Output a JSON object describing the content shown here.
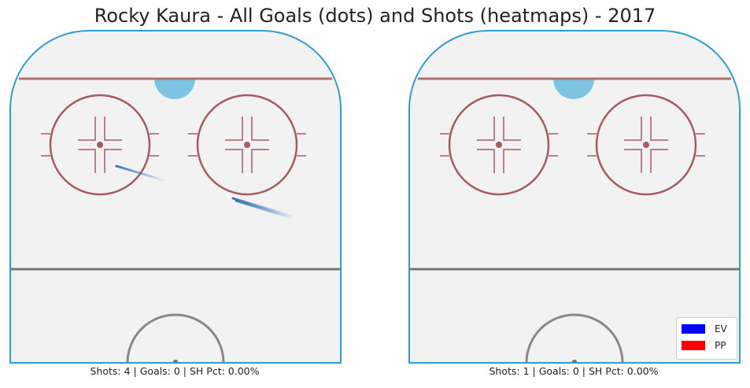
{
  "title": "Rocky Kaura - All Goals (dots) and Shots (heatmaps) - 2017",
  "colors": {
    "board": "#2b9fd2",
    "ice": "#f2f2f2",
    "red_line": "#b07070",
    "circle": "#a85a60",
    "crease": "#7dc4e2",
    "blue_line": "#777777",
    "ev": "#0000ff",
    "pp": "#ff0000",
    "shot_trail": "#2e6fb8"
  },
  "legend": [
    {
      "label": "EV",
      "color": "#0000ff"
    },
    {
      "label": "PP",
      "color": "#ff0000"
    }
  ],
  "chart_data": [
    {
      "type": "heatmap",
      "panel": "left",
      "caption": "Shots: 4 | Goals: 0 | SH Pct: 0.00%",
      "shots": 4,
      "goals": 0,
      "sh_pct": "0.00%",
      "shot_trails": [
        {
          "from": [
            148,
            211
          ],
          "to": [
            208,
            229
          ]
        },
        {
          "from": [
            296,
            252
          ],
          "to": [
            372,
            275
          ]
        },
        {
          "from": [
            300,
            255
          ],
          "to": [
            370,
            277
          ]
        }
      ],
      "goal_points": []
    },
    {
      "type": "heatmap",
      "panel": "right",
      "caption": "Shots: 1 | Goals: 0 | SH Pct: 0.00%",
      "shots": 1,
      "goals": 0,
      "sh_pct": "0.00%",
      "shot_trails": [],
      "goal_points": []
    }
  ]
}
